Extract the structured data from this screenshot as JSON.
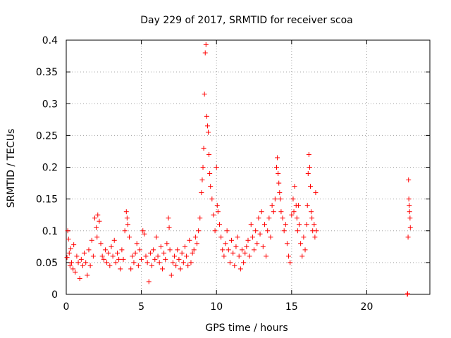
{
  "chart_data": {
    "type": "scatter",
    "title": "Day 229 of 2017, SRMTID for receiver scoa",
    "xlabel": "GPS time / hours",
    "ylabel": "SRMTID / TECUs",
    "xlim": [
      0,
      24.2
    ],
    "ylim": [
      0,
      0.4
    ],
    "x_ticks": [
      0,
      5,
      10,
      15,
      20
    ],
    "x_tick_labels": [
      "0",
      "5",
      "10",
      "15",
      "20"
    ],
    "y_ticks": [
      0,
      0.05,
      0.1,
      0.15,
      0.2,
      0.25,
      0.3,
      0.35,
      0.4
    ],
    "y_tick_labels": [
      "0",
      "0.05",
      "0.1",
      "0.15",
      "0.2",
      "0.25",
      "0.3",
      "0.35",
      "0.4"
    ],
    "grid": true,
    "marker": "+",
    "color": "#ff0000",
    "series": [
      {
        "name": "SRMTID",
        "points": [
          [
            0.05,
            0.058
          ],
          [
            0.1,
            0.1
          ],
          [
            0.15,
            0.087
          ],
          [
            0.2,
            0.065
          ],
          [
            0.25,
            0.045
          ],
          [
            0.3,
            0.072
          ],
          [
            0.35,
            0.05
          ],
          [
            0.45,
            0.04
          ],
          [
            0.5,
            0.078
          ],
          [
            0.6,
            0.035
          ],
          [
            0.7,
            0.06
          ],
          [
            0.8,
            0.05
          ],
          [
            0.9,
            0.025
          ],
          [
            1.0,
            0.055
          ],
          [
            1.1,
            0.045
          ],
          [
            1.2,
            0.065
          ],
          [
            1.3,
            0.05
          ],
          [
            1.4,
            0.03
          ],
          [
            1.5,
            0.07
          ],
          [
            1.6,
            0.045
          ],
          [
            1.7,
            0.085
          ],
          [
            1.8,
            0.06
          ],
          [
            1.9,
            0.12
          ],
          [
            2.0,
            0.105
          ],
          [
            2.05,
            0.09
          ],
          [
            2.1,
            0.125
          ],
          [
            2.2,
            0.115
          ],
          [
            2.3,
            0.08
          ],
          [
            2.4,
            0.06
          ],
          [
            2.5,
            0.055
          ],
          [
            2.6,
            0.07
          ],
          [
            2.7,
            0.05
          ],
          [
            2.8,
            0.065
          ],
          [
            2.9,
            0.045
          ],
          [
            3.0,
            0.075
          ],
          [
            3.1,
            0.06
          ],
          [
            3.2,
            0.085
          ],
          [
            3.3,
            0.05
          ],
          [
            3.4,
            0.065
          ],
          [
            3.5,
            0.055
          ],
          [
            3.6,
            0.04
          ],
          [
            3.7,
            0.07
          ],
          [
            3.8,
            0.055
          ],
          [
            3.9,
            0.1
          ],
          [
            4.0,
            0.13
          ],
          [
            4.05,
            0.12
          ],
          [
            4.1,
            0.11
          ],
          [
            4.2,
            0.09
          ],
          [
            4.3,
            0.04
          ],
          [
            4.4,
            0.06
          ],
          [
            4.5,
            0.05
          ],
          [
            4.6,
            0.065
          ],
          [
            4.7,
            0.08
          ],
          [
            4.8,
            0.045
          ],
          [
            4.9,
            0.07
          ],
          [
            5.0,
            0.055
          ],
          [
            5.1,
            0.1
          ],
          [
            5.2,
            0.095
          ],
          [
            5.3,
            0.06
          ],
          [
            5.4,
            0.05
          ],
          [
            5.5,
            0.02
          ],
          [
            5.6,
            0.065
          ],
          [
            5.7,
            0.045
          ],
          [
            5.8,
            0.07
          ],
          [
            5.9,
            0.055
          ],
          [
            6.0,
            0.09
          ],
          [
            6.1,
            0.06
          ],
          [
            6.2,
            0.05
          ],
          [
            6.3,
            0.075
          ],
          [
            6.4,
            0.04
          ],
          [
            6.5,
            0.065
          ],
          [
            6.6,
            0.055
          ],
          [
            6.7,
            0.08
          ],
          [
            6.8,
            0.12
          ],
          [
            6.85,
            0.105
          ],
          [
            6.9,
            0.07
          ],
          [
            7.0,
            0.03
          ],
          [
            7.1,
            0.05
          ],
          [
            7.2,
            0.06
          ],
          [
            7.3,
            0.045
          ],
          [
            7.4,
            0.07
          ],
          [
            7.5,
            0.055
          ],
          [
            7.6,
            0.04
          ],
          [
            7.7,
            0.065
          ],
          [
            7.8,
            0.05
          ],
          [
            7.9,
            0.075
          ],
          [
            8.0,
            0.06
          ],
          [
            8.1,
            0.045
          ],
          [
            8.2,
            0.085
          ],
          [
            8.3,
            0.05
          ],
          [
            8.4,
            0.065
          ],
          [
            8.5,
            0.07
          ],
          [
            8.6,
            0.09
          ],
          [
            8.7,
            0.08
          ],
          [
            8.8,
            0.1
          ],
          [
            8.9,
            0.12
          ],
          [
            9.0,
            0.16
          ],
          [
            9.05,
            0.18
          ],
          [
            9.1,
            0.2
          ],
          [
            9.15,
            0.23
          ],
          [
            9.2,
            0.315
          ],
          [
            9.25,
            0.38
          ],
          [
            9.3,
            0.393
          ],
          [
            9.35,
            0.28
          ],
          [
            9.4,
            0.265
          ],
          [
            9.45,
            0.255
          ],
          [
            9.5,
            0.22
          ],
          [
            9.55,
            0.19
          ],
          [
            9.6,
            0.17
          ],
          [
            9.7,
            0.15
          ],
          [
            9.8,
            0.125
          ],
          [
            9.9,
            0.1
          ],
          [
            10.0,
            0.2
          ],
          [
            10.05,
            0.14
          ],
          [
            10.1,
            0.13
          ],
          [
            10.2,
            0.11
          ],
          [
            10.3,
            0.09
          ],
          [
            10.4,
            0.07
          ],
          [
            10.5,
            0.06
          ],
          [
            10.6,
            0.08
          ],
          [
            10.7,
            0.1
          ],
          [
            10.8,
            0.07
          ],
          [
            10.9,
            0.05
          ],
          [
            11.0,
            0.085
          ],
          [
            11.1,
            0.065
          ],
          [
            11.2,
            0.045
          ],
          [
            11.3,
            0.075
          ],
          [
            11.4,
            0.09
          ],
          [
            11.5,
            0.06
          ],
          [
            11.6,
            0.04
          ],
          [
            11.7,
            0.07
          ],
          [
            11.8,
            0.05
          ],
          [
            11.9,
            0.065
          ],
          [
            12.0,
            0.075
          ],
          [
            12.1,
            0.085
          ],
          [
            12.2,
            0.06
          ],
          [
            12.3,
            0.11
          ],
          [
            12.4,
            0.09
          ],
          [
            12.5,
            0.07
          ],
          [
            12.6,
            0.1
          ],
          [
            12.7,
            0.08
          ],
          [
            12.8,
            0.12
          ],
          [
            12.9,
            0.095
          ],
          [
            13.0,
            0.13
          ],
          [
            13.1,
            0.075
          ],
          [
            13.2,
            0.11
          ],
          [
            13.3,
            0.06
          ],
          [
            13.4,
            0.1
          ],
          [
            13.5,
            0.12
          ],
          [
            13.6,
            0.09
          ],
          [
            13.7,
            0.14
          ],
          [
            13.8,
            0.13
          ],
          [
            13.9,
            0.15
          ],
          [
            14.0,
            0.2
          ],
          [
            14.05,
            0.215
          ],
          [
            14.1,
            0.19
          ],
          [
            14.15,
            0.175
          ],
          [
            14.2,
            0.16
          ],
          [
            14.25,
            0.15
          ],
          [
            14.3,
            0.13
          ],
          [
            14.4,
            0.12
          ],
          [
            14.5,
            0.1
          ],
          [
            14.6,
            0.11
          ],
          [
            14.7,
            0.08
          ],
          [
            14.8,
            0.06
          ],
          [
            14.9,
            0.05
          ],
          [
            15.0,
            0.125
          ],
          [
            15.1,
            0.15
          ],
          [
            15.15,
            0.13
          ],
          [
            15.2,
            0.17
          ],
          [
            15.3,
            0.14
          ],
          [
            15.35,
            0.12
          ],
          [
            15.4,
            0.1
          ],
          [
            15.45,
            0.14
          ],
          [
            15.5,
            0.11
          ],
          [
            15.6,
            0.08
          ],
          [
            15.7,
            0.06
          ],
          [
            15.8,
            0.09
          ],
          [
            15.9,
            0.07
          ],
          [
            16.0,
            0.11
          ],
          [
            16.05,
            0.14
          ],
          [
            16.1,
            0.19
          ],
          [
            16.15,
            0.22
          ],
          [
            16.2,
            0.2
          ],
          [
            16.25,
            0.17
          ],
          [
            16.3,
            0.13
          ],
          [
            16.35,
            0.12
          ],
          [
            16.4,
            0.1
          ],
          [
            16.5,
            0.11
          ],
          [
            16.55,
            0.09
          ],
          [
            16.6,
            0.16
          ],
          [
            16.65,
            0.1
          ],
          [
            22.7,
            0.0
          ],
          [
            22.72,
            0.001
          ],
          [
            22.75,
            0.09
          ],
          [
            22.78,
            0.18
          ],
          [
            22.8,
            0.15
          ],
          [
            22.83,
            0.14
          ],
          [
            22.85,
            0.13
          ],
          [
            22.88,
            0.12
          ],
          [
            22.9,
            0.105
          ]
        ]
      }
    ]
  }
}
